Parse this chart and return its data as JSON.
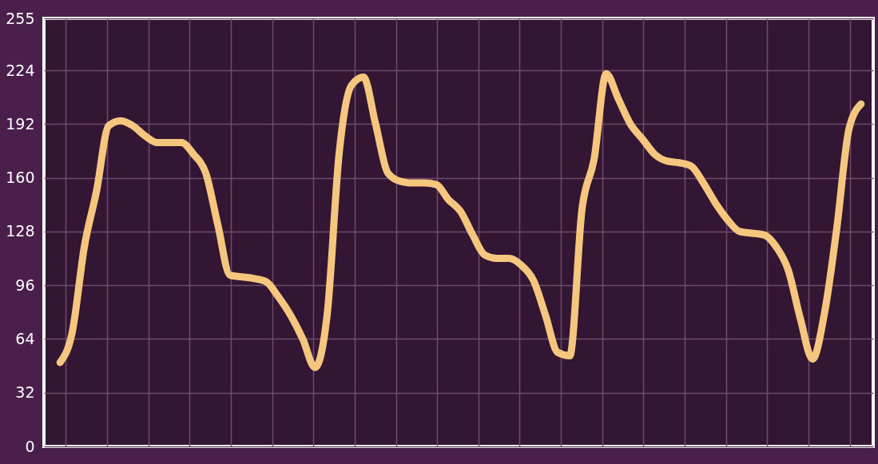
{
  "chart_data": {
    "type": "line",
    "categories": [
      null,
      null,
      null,
      null,
      null,
      null,
      null,
      null,
      null,
      null,
      null,
      null,
      null,
      null,
      null,
      null,
      null,
      null,
      null,
      null,
      null,
      null,
      null,
      null,
      null,
      null,
      null,
      null,
      null,
      null,
      null,
      null,
      null,
      null,
      null,
      null,
      null,
      null,
      null,
      null,
      null,
      null,
      null,
      null,
      null,
      null,
      null,
      null,
      null,
      null,
      null,
      null,
      null,
      null,
      null,
      null,
      null,
      null,
      null,
      null,
      null,
      null,
      null,
      null,
      null,
      null,
      null
    ],
    "series": [
      {
        "color": "#f5c77e",
        "values": [
          50,
          68,
          119,
          152,
          191,
          194,
          191,
          185,
          181,
          181,
          181,
          174,
          163,
          132,
          102,
          101,
          100,
          98,
          89,
          78,
          64,
          47,
          78,
          175,
          215,
          220,
          192,
          163,
          158,
          157,
          157,
          156,
          147,
          140,
          126,
          114,
          112,
          112,
          108,
          99,
          78,
          56,
          54,
          141,
          171,
          222,
          207,
          192,
          183,
          174,
          170,
          169,
          167,
          157,
          145,
          135,
          128,
          127,
          126,
          119,
          105,
          76,
          52,
          80,
          130,
          189,
          204
        ]
      }
    ],
    "ylim": [
      0,
      255
    ],
    "yticks": [
      0,
      32,
      64,
      96,
      128,
      160,
      192,
      224,
      255
    ],
    "grid": true,
    "tick_labels": "y",
    "line_style": "solid"
  }
}
